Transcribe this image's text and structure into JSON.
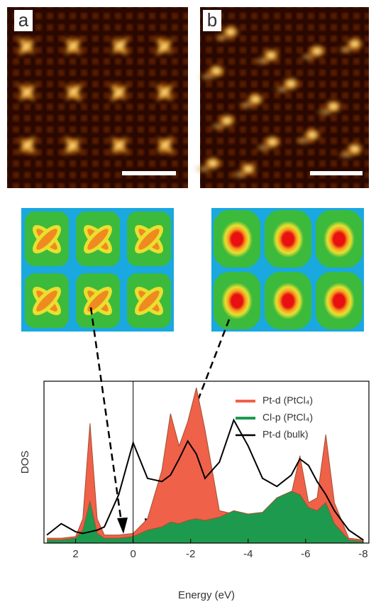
{
  "panel_labels": [
    "a",
    "b"
  ],
  "chart_data": {
    "type": "area",
    "xlabel": "Energy (eV)",
    "ylabel": "DOS",
    "x": [
      3,
      2.5,
      2,
      1.75,
      1.5,
      1.25,
      1,
      0.5,
      0,
      -0.5,
      -1,
      -1.3,
      -1.6,
      -1.9,
      -2.2,
      -2.5,
      -3,
      -3.5,
      -4,
      -4.5,
      -5,
      -5.5,
      -5.8,
      -6.1,
      -6.4,
      -6.7,
      -7,
      -7.5,
      -8
    ],
    "xlim": [
      3.1,
      -8.2
    ],
    "xticks": [
      2,
      0,
      -2,
      -4,
      -6,
      -8
    ],
    "ylim": [
      0,
      10
    ],
    "series": [
      {
        "name": "Pt-d (PtCl₄)",
        "color": "#f0614a",
        "fill": true,
        "values": [
          0.3,
          0.3,
          0.4,
          1.5,
          7.4,
          1.5,
          0.5,
          0.5,
          0.6,
          1.5,
          4.5,
          8.0,
          6.0,
          7.5,
          9.6,
          7.0,
          2.0,
          1.8,
          1.6,
          1.8,
          2.0,
          3.0,
          5.4,
          2.5,
          2.8,
          6.7,
          2.5,
          0.3,
          0.2
        ]
      },
      {
        "name": "Cl-p (PtCl₄)",
        "color": "#1e9a4e",
        "fill": true,
        "values": [
          0.2,
          0.2,
          0.3,
          0.8,
          2.6,
          0.6,
          0.3,
          0.3,
          0.4,
          0.8,
          1.0,
          1.3,
          1.2,
          1.4,
          1.5,
          1.4,
          1.6,
          2.0,
          1.8,
          1.9,
          2.8,
          3.2,
          3.0,
          2.2,
          2.0,
          2.5,
          1.2,
          0.2,
          0.1
        ]
      },
      {
        "name": "Pt-d (bulk)",
        "color": "#000000",
        "fill": false,
        "values": [
          0.5,
          1.2,
          0.7,
          0.6,
          0.7,
          0.8,
          1.0,
          3.0,
          6.2,
          4.0,
          3.8,
          4.2,
          5.2,
          6.3,
          5.5,
          4.0,
          5.0,
          7.6,
          6.0,
          4.0,
          3.5,
          4.2,
          5.2,
          4.8,
          3.8,
          3.0,
          2.0,
          0.8,
          0.2
        ]
      }
    ],
    "legend": "upper right"
  }
}
